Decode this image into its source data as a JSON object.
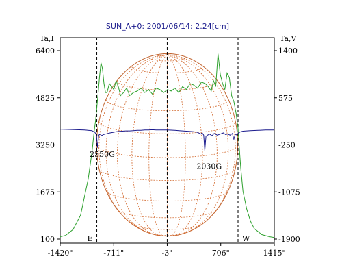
{
  "chart_data": {
    "type": "line",
    "title": "SUN_A+0: 2001/06/14: 2.24[cm]",
    "left_axis_label": "Ta,I",
    "right_axis_label": "Ta,V",
    "x_ticks": [
      "-1420\"",
      "-711\"",
      "-3\"",
      "706\"",
      "1415\""
    ],
    "x_tick_values": [
      -1420,
      -711,
      -3,
      706,
      1415
    ],
    "xlim": [
      -1420,
      1415
    ],
    "left_ticks": [
      "6400",
      "4825",
      "3250",
      "1675",
      "100"
    ],
    "left_ylim": [
      100,
      6400
    ],
    "right_ticks": [
      "1400",
      "575",
      "-250",
      "-1075",
      "-1900"
    ],
    "right_ylim": [
      -1900,
      1400
    ],
    "limb_labels": {
      "east": "E",
      "west": "W"
    },
    "limb_x": [
      -935,
      935
    ],
    "center_x": -3,
    "annotations": [
      {
        "text": "2550G",
        "x": -935,
        "y_I": 2850
      },
      {
        "text": "2030G",
        "x": 480,
        "y_I": 2450
      }
    ],
    "disk": {
      "center_x": -3,
      "radius": 935,
      "center_y_I": 3250,
      "half_height_I": 3050
    },
    "series": [
      {
        "name": "I",
        "color": "#2ca02c",
        "x": [
          -1420,
          -1350,
          -1250,
          -1150,
          -1100,
          -1050,
          -1000,
          -970,
          -950,
          -935,
          -920,
          -900,
          -880,
          -860,
          -840,
          -820,
          -800,
          -770,
          -740,
          -710,
          -680,
          -650,
          -620,
          -580,
          -540,
          -500,
          -450,
          -400,
          -350,
          -300,
          -250,
          -200,
          -150,
          -100,
          -50,
          0,
          50,
          100,
          150,
          200,
          250,
          300,
          350,
          400,
          450,
          500,
          540,
          580,
          610,
          640,
          670,
          700,
          730,
          760,
          790,
          820,
          850,
          880,
          910,
          935,
          950,
          970,
          1000,
          1050,
          1100,
          1150,
          1250,
          1350,
          1415
        ],
        "y": [
          180,
          220,
          420,
          900,
          1500,
          2100,
          3000,
          3700,
          4100,
          4500,
          4900,
          5500,
          6000,
          5800,
          5300,
          5000,
          5000,
          5300,
          5200,
          5100,
          5400,
          5200,
          4900,
          5000,
          5150,
          4900,
          5000,
          5050,
          5150,
          5000,
          5100,
          4950,
          5150,
          5100,
          5000,
          5100,
          5050,
          5150,
          5000,
          5200,
          5100,
          5300,
          5250,
          5150,
          5350,
          5300,
          5200,
          5050,
          5400,
          5200,
          6300,
          5600,
          5300,
          5100,
          5650,
          5500,
          4900,
          4700,
          4300,
          3800,
          3200,
          2500,
          1700,
          1100,
          700,
          450,
          250,
          180,
          150
        ]
      },
      {
        "name": "V",
        "color": "#1a1a8c",
        "x": [
          -1420,
          -1300,
          -1200,
          -1100,
          -1000,
          -960,
          -940,
          -925,
          -910,
          -890,
          -870,
          -850,
          -820,
          -790,
          -760,
          -720,
          -680,
          -640,
          -600,
          -550,
          -500,
          -450,
          -400,
          -350,
          -300,
          -250,
          -200,
          -150,
          -100,
          -50,
          0,
          50,
          100,
          150,
          200,
          250,
          300,
          350,
          400,
          440,
          460,
          480,
          495,
          510,
          530,
          560,
          590,
          620,
          660,
          700,
          740,
          770,
          800,
          830,
          860,
          880,
          900,
          920,
          940,
          970,
          1000,
          1100,
          1200,
          1300,
          1415
        ],
        "y": [
          25,
          20,
          15,
          10,
          0,
          -30,
          -80,
          -300,
          -80,
          -60,
          -90,
          -70,
          -60,
          -50,
          -40,
          -30,
          -20,
          -15,
          -10,
          -5,
          -5,
          0,
          5,
          5,
          10,
          12,
          15,
          12,
          10,
          10,
          10,
          8,
          5,
          0,
          -5,
          -10,
          -15,
          -20,
          -30,
          -60,
          -40,
          -80,
          -350,
          -100,
          -80,
          -60,
          -90,
          -50,
          -80,
          -60,
          -40,
          -70,
          -60,
          -80,
          -50,
          -150,
          -60,
          -80,
          -40,
          -20,
          -10,
          0,
          5,
          10,
          10
        ]
      }
    ]
  }
}
